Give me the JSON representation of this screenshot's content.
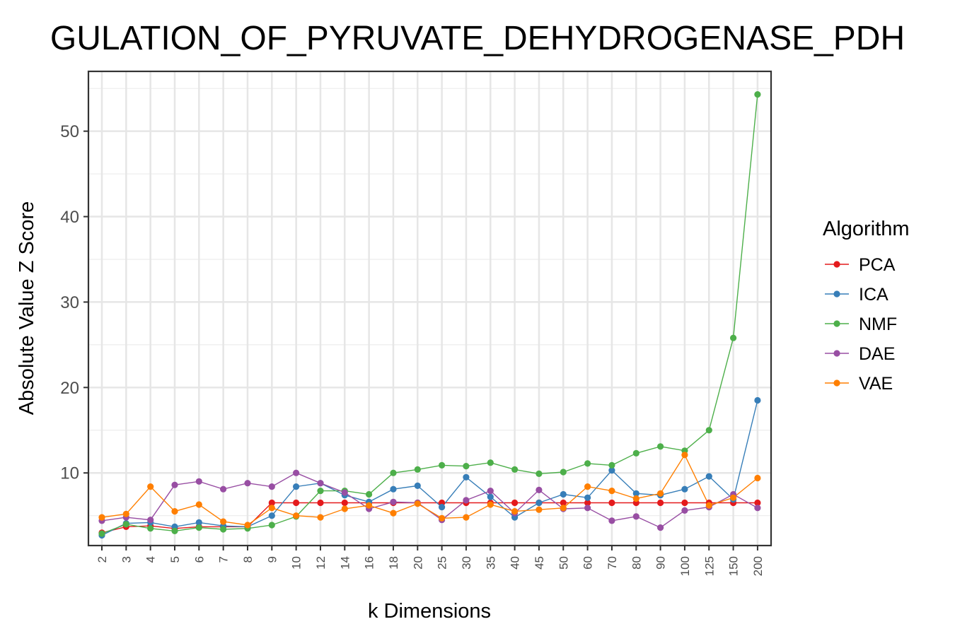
{
  "chart_data": {
    "type": "line",
    "title": "GULATION_OF_PYRUVATE_DEHYDROGENASE_PDH",
    "xlabel": "k Dimensions",
    "ylabel": "Absolute Value Z Score",
    "categories": [
      "2",
      "3",
      "4",
      "5",
      "6",
      "7",
      "8",
      "9",
      "10",
      "12",
      "14",
      "16",
      "18",
      "20",
      "25",
      "30",
      "35",
      "40",
      "45",
      "50",
      "60",
      "70",
      "80",
      "90",
      "100",
      "125",
      "150",
      "200"
    ],
    "yticks": [
      10,
      20,
      30,
      40,
      50
    ],
    "ylim": [
      1.5,
      57
    ],
    "grid": true,
    "legend": {
      "title": "Algorithm",
      "position": "right"
    },
    "series": [
      {
        "name": "PCA",
        "color": "#e41a1c",
        "values": [
          3.0,
          3.7,
          3.8,
          3.5,
          3.7,
          3.7,
          3.7,
          6.5,
          6.5,
          6.5,
          6.5,
          6.5,
          6.5,
          6.5,
          6.5,
          6.5,
          6.5,
          6.5,
          6.5,
          6.5,
          6.5,
          6.5,
          6.5,
          6.5,
          6.5,
          6.5,
          6.5,
          6.5
        ]
      },
      {
        "name": "ICA",
        "color": "#377eb8",
        "values": [
          2.7,
          4.1,
          4.2,
          3.7,
          4.2,
          3.8,
          3.7,
          5.0,
          8.4,
          8.8,
          7.4,
          6.6,
          8.1,
          8.5,
          6.0,
          9.5,
          7.2,
          4.8,
          6.5,
          7.5,
          7.1,
          10.3,
          7.6,
          7.4,
          8.1,
          9.6,
          6.9,
          18.5
        ]
      },
      {
        "name": "NMF",
        "color": "#4daf4a",
        "values": [
          2.9,
          4.0,
          3.5,
          3.2,
          3.6,
          3.4,
          3.5,
          3.9,
          4.9,
          7.9,
          7.9,
          7.5,
          10.0,
          10.4,
          10.9,
          10.8,
          11.2,
          10.4,
          9.9,
          10.1,
          11.1,
          10.9,
          12.3,
          13.1,
          12.6,
          15.0,
          25.8,
          54.3
        ]
      },
      {
        "name": "DAE",
        "color": "#984ea3",
        "values": [
          4.4,
          4.8,
          4.5,
          8.6,
          9.0,
          8.1,
          8.8,
          8.4,
          10.0,
          8.8,
          7.7,
          5.8,
          6.6,
          6.5,
          4.5,
          6.8,
          7.9,
          5.3,
          8.0,
          5.8,
          5.9,
          4.4,
          4.9,
          3.6,
          5.6,
          6.0,
          7.5,
          5.9
        ]
      },
      {
        "name": "VAE",
        "color": "#ff7f00",
        "values": [
          4.8,
          5.2,
          8.4,
          5.5,
          6.3,
          4.3,
          3.9,
          5.9,
          5.0,
          4.8,
          5.8,
          6.2,
          5.3,
          6.4,
          4.7,
          4.8,
          6.3,
          5.5,
          5.7,
          5.9,
          8.4,
          7.9,
          7.0,
          7.6,
          12.1,
          6.2,
          7.1,
          9.4
        ]
      }
    ]
  }
}
